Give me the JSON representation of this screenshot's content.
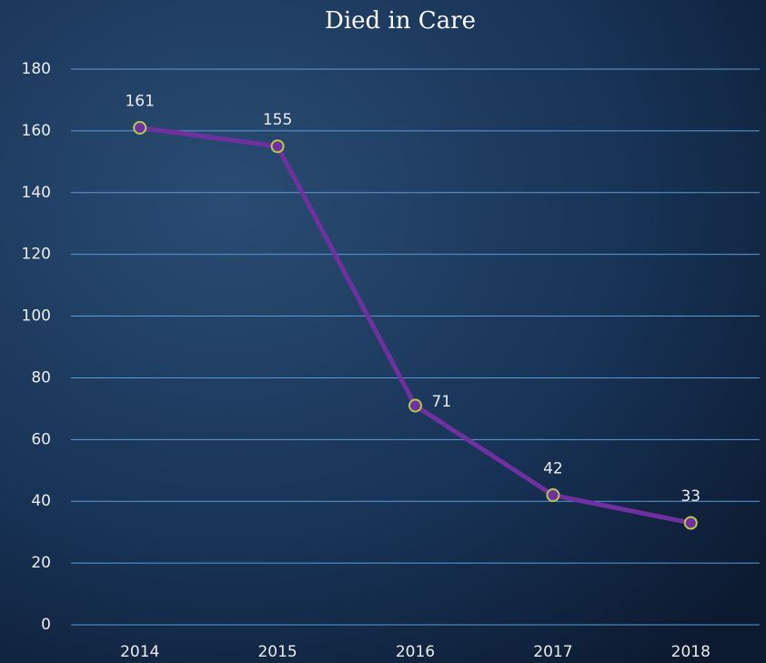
{
  "chart_data": {
    "type": "line",
    "title": "Died in Care",
    "categories": [
      "2014",
      "2015",
      "2016",
      "2017",
      "2018"
    ],
    "series": [
      {
        "name": "Died in Care",
        "color": "#7030a0",
        "marker_edge": "#b5c94a",
        "values": [
          161,
          155,
          71,
          42,
          33
        ]
      }
    ],
    "ylim": [
      0,
      180
    ],
    "yticks": [
      0,
      20,
      40,
      60,
      80,
      100,
      120,
      140,
      160,
      180
    ],
    "grid": true,
    "grid_color": "#5b9bd5"
  }
}
